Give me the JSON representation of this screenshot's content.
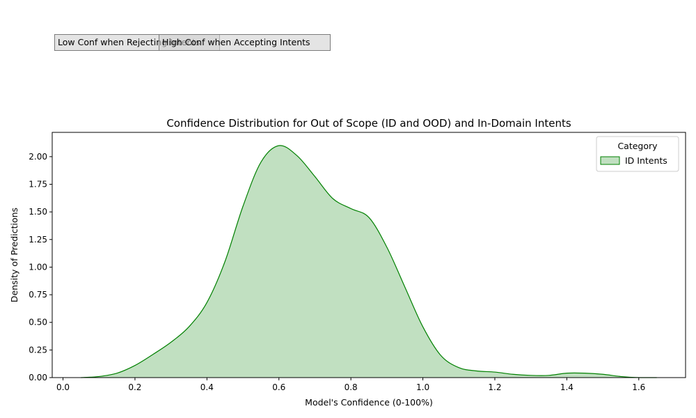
{
  "chart_data": {
    "type": "area",
    "title": "Confidence Distribution for Out of Scope (ID and OOD) and In-Domain Intents",
    "xlabel": "Model's Confidence (0-100%)",
    "ylabel": "Density of Predictions",
    "xlim": [
      -0.03,
      1.73
    ],
    "ylim": [
      0,
      2.22
    ],
    "x_ticks": [
      "0.0",
      "0.2",
      "0.4",
      "0.6",
      "0.8",
      "1.0",
      "1.2",
      "1.4",
      "1.6"
    ],
    "y_ticks": [
      "0.00",
      "0.25",
      "0.50",
      "0.75",
      "1.00",
      "1.25",
      "1.50",
      "1.75",
      "2.00"
    ],
    "grid": false,
    "legend": {
      "title": "Category",
      "placement": "top-right"
    },
    "series": [
      {
        "name": "ID Intents",
        "color": "#008000",
        "fill": "#c1e0c1",
        "x": [
          0.05,
          0.1,
          0.15,
          0.2,
          0.25,
          0.3,
          0.35,
          0.4,
          0.45,
          0.5,
          0.55,
          0.6,
          0.65,
          0.7,
          0.75,
          0.8,
          0.85,
          0.9,
          0.95,
          1.0,
          1.05,
          1.1,
          1.15,
          1.2,
          1.25,
          1.3,
          1.35,
          1.4,
          1.45,
          1.5,
          1.55,
          1.6,
          1.65
        ],
        "y": [
          0.0,
          0.01,
          0.04,
          0.11,
          0.21,
          0.32,
          0.46,
          0.68,
          1.05,
          1.55,
          1.95,
          2.1,
          2.01,
          1.82,
          1.62,
          1.53,
          1.45,
          1.18,
          0.82,
          0.46,
          0.2,
          0.09,
          0.06,
          0.05,
          0.03,
          0.02,
          0.02,
          0.04,
          0.04,
          0.03,
          0.01,
          0.0,
          0.0
        ]
      }
    ]
  },
  "annotations": [
    {
      "text": "Low Conf when Rejecting Intents"
    },
    {
      "text": "High Conf when Accepting Intents"
    }
  ]
}
